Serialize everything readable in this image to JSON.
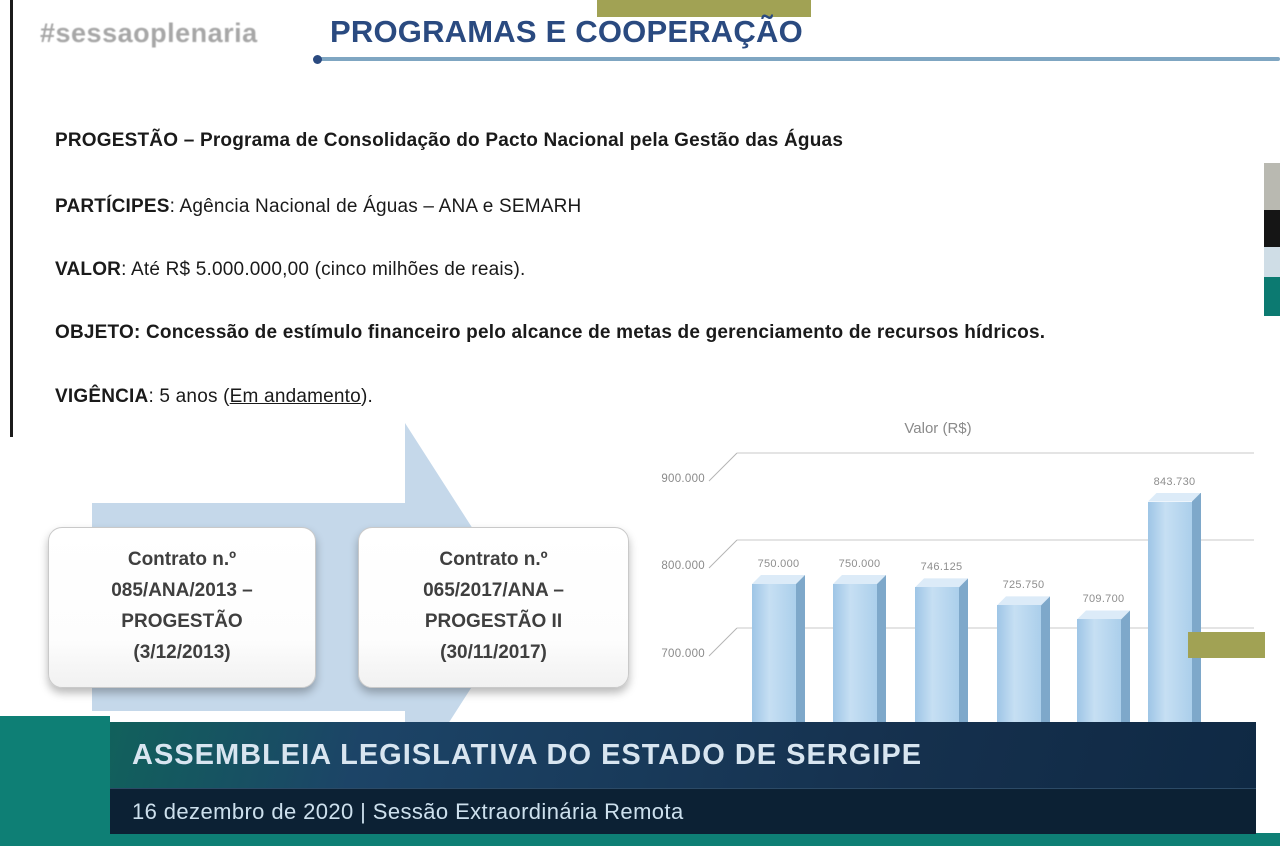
{
  "header": {
    "hashtag": "#sessaoplenaria",
    "title": "PROGRAMAS E COOPERAÇÃO"
  },
  "info": {
    "progestao": {
      "label": "PROGESTÃO",
      "text": " – Programa de Consolidação do Pacto Nacional pela Gestão das Águas"
    },
    "participes": {
      "label": "PARTÍCIPES",
      "text": ": Agência Nacional de Águas – ANA e SEMARH"
    },
    "valor": {
      "label": "VALOR",
      "text": ": Até R$ 5.000.000,00 (cinco milhões de reais)."
    },
    "objeto": {
      "label": "OBJETO",
      "text": ": Concessão de estímulo financeiro pelo alcance de metas de gerenciamento de recursos hídricos."
    },
    "vigencia": {
      "label": "VIGÊNCIA",
      "pre": ": 5 anos (",
      "underlined": "Em andamento",
      "post": ")."
    }
  },
  "contract_boxes": [
    {
      "lines": [
        "Contrato n.º",
        "085/ANA/2013 –",
        "PROGESTÃO",
        "(3/12/2013)"
      ]
    },
    {
      "lines": [
        "Contrato n.º",
        "065/2017/ANA –",
        "PROGESTÃO II",
        "(30/11/2017)"
      ]
    }
  ],
  "chart_data": {
    "type": "bar",
    "title": "Valor (R$)",
    "values": [
      750000,
      750000,
      746125,
      725750,
      709700,
      843730
    ],
    "labels": [
      "750.000",
      "750.000",
      "746.125",
      "725.750",
      "709.700",
      "843.730"
    ],
    "yticks": [
      "900.000",
      "800.000",
      "700.000"
    ],
    "ylim": [
      650000,
      950000
    ],
    "grid": true,
    "legend": false,
    "x_axis_hidden_behind_banner": true
  },
  "banner": {
    "title": "ASSEMBLEIA LEGISLATIVA DO ESTADO DE SERGIPE",
    "subtitle": "16 dezembro de 2020 | Sessão Extraordinária Remota"
  },
  "colors": {
    "title_blue": "#2a4a80",
    "underline_blue": "#7fa6c2",
    "olive": "#a1a254",
    "teal": "#0e7f75",
    "banner_navy": "#15304d",
    "banner_dark_navy": "#0c2134",
    "arrow_blue": "#c5d8ea",
    "bar_blue": "#aed2ee"
  }
}
